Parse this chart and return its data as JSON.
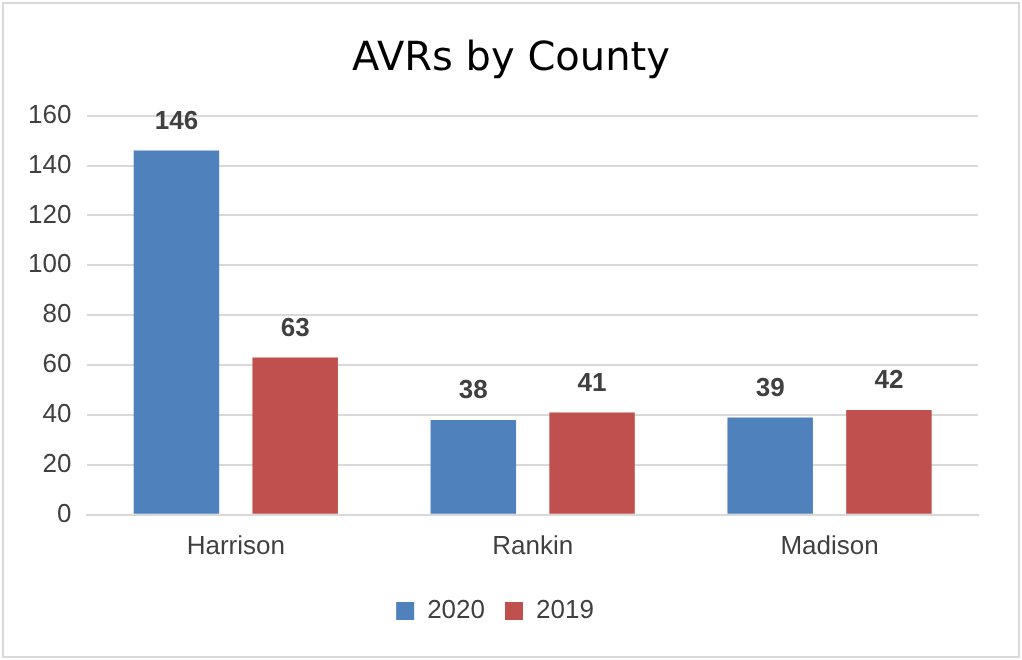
{
  "chart_data": {
    "type": "bar",
    "title": "AVRs by County",
    "categories": [
      "Harrison",
      "Rankin",
      "Madison"
    ],
    "series": [
      {
        "name": "2020",
        "color": "#4f81bd",
        "values": [
          146,
          38,
          39
        ]
      },
      {
        "name": "2019",
        "color": "#c0504d",
        "values": [
          63,
          41,
          42
        ]
      }
    ],
    "ylim": [
      0,
      160
    ],
    "yticks": [
      0,
      20,
      40,
      60,
      80,
      100,
      120,
      140,
      160
    ],
    "grid": "y",
    "legend": "bottom",
    "data_labels": true
  }
}
